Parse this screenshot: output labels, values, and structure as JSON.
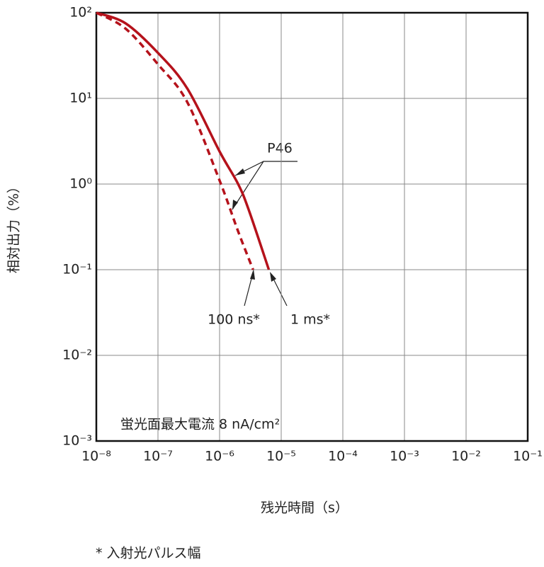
{
  "chart_data": {
    "type": "line",
    "ylabel": "相対出力（%）",
    "xlabel": "残光時間（s）",
    "footnote": "* 入射光パルス幅",
    "annotations": [
      "P46",
      "蛍光面最大電流 8 nA/cm²"
    ],
    "log_x": true,
    "log_y": true,
    "grid": true,
    "xlim": [
      1e-08,
      0.1
    ],
    "ylim": [
      0.001,
      100
    ],
    "xticks": [
      {
        "value": 1e-08,
        "label": "10⁻⁸"
      },
      {
        "value": 1e-07,
        "label": "10⁻⁷"
      },
      {
        "value": 1e-06,
        "label": "10⁻⁶"
      },
      {
        "value": 1e-05,
        "label": "10⁻⁵"
      },
      {
        "value": 0.0001,
        "label": "10⁻⁴"
      },
      {
        "value": 0.001,
        "label": "10⁻³"
      },
      {
        "value": 0.01,
        "label": "10⁻²"
      },
      {
        "value": 0.1,
        "label": "10⁻¹"
      }
    ],
    "yticks": [
      {
        "value": 0.001,
        "label": "10⁻³"
      },
      {
        "value": 0.01,
        "label": "10⁻²"
      },
      {
        "value": 0.1,
        "label": "10⁻¹"
      },
      {
        "value": 1,
        "label": "10⁰"
      },
      {
        "value": 10,
        "label": "10¹"
      },
      {
        "value": 100,
        "label": "10²"
      }
    ],
    "series": [
      {
        "name": "1 ms*",
        "color": "#b5121b",
        "dashed": false,
        "x": [
          1e-08,
          3e-08,
          1e-07,
          3e-07,
          1e-06,
          2e-06,
          3e-06,
          6.3e-06
        ],
        "values": [
          100,
          75,
          34,
          13,
          2.4,
          1.0,
          0.49,
          0.1
        ]
      },
      {
        "name": "100 ns*",
        "color": "#b5121b",
        "dashed": true,
        "x": [
          1e-08,
          3e-08,
          1e-07,
          3e-07,
          1e-06,
          2e-06,
          3.5e-06
        ],
        "values": [
          100,
          65,
          25,
          9,
          1.1,
          0.28,
          0.1
        ]
      }
    ]
  }
}
